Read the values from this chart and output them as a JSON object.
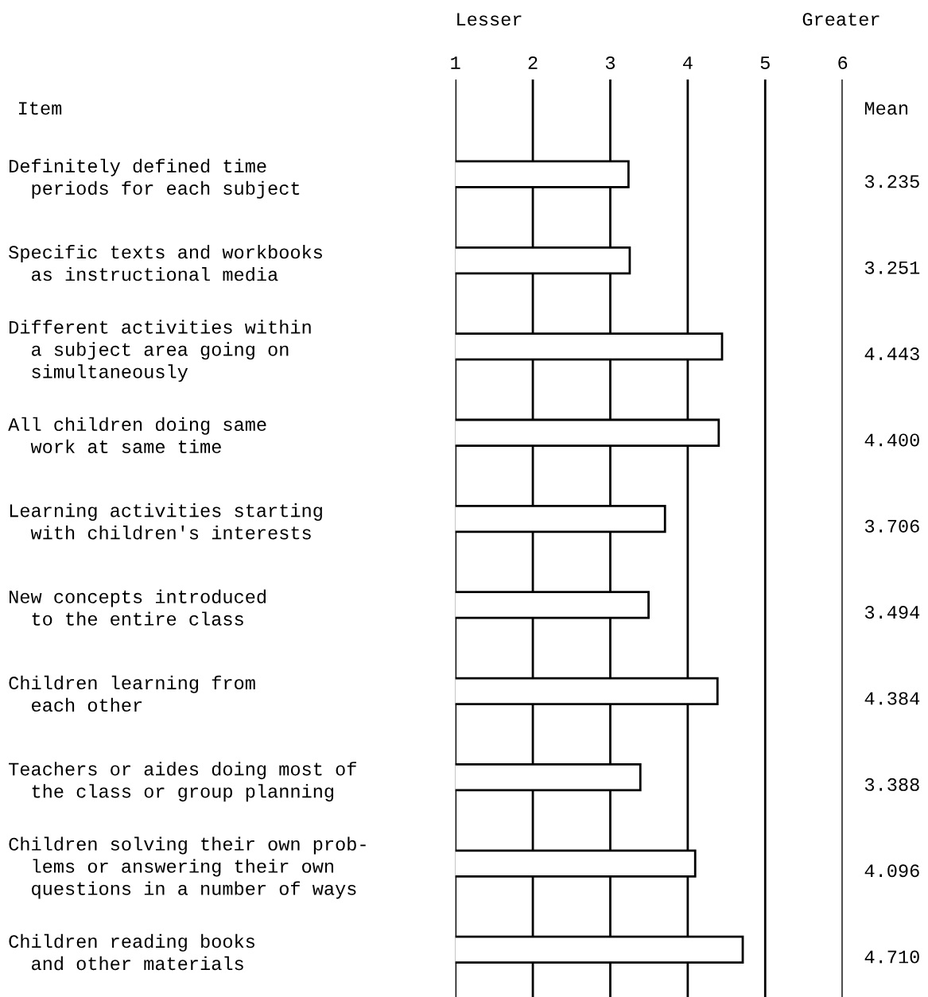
{
  "chart_data": {
    "type": "bar",
    "orientation": "horizontal",
    "ylabel": "Item",
    "categories": [
      "Definitely defined time\n  periods for each subject",
      "Specific texts and workbooks\n  as instructional media",
      "Different activities within\n  a subject area going on\n  simultaneously",
      "All children doing same\n  work at same time",
      "Learning activities starting\n  with children's interests",
      "New concepts introduced\n  to the entire class",
      "Children learning from\n  each other",
      "Teachers or aides doing most of\n  the class or group planning",
      "Children solving their own prob-\n  lems or answering their own\n  questions in a number of ways",
      "Children reading books\n  and other materials"
    ],
    "values": [
      3.235,
      3.251,
      4.443,
      4.4,
      3.706,
      3.494,
      4.384,
      3.388,
      4.096,
      4.71
    ],
    "value_labels": [
      "3.235",
      "3.251",
      "4.443",
      "4.400",
      "3.706",
      "3.494",
      "4.384",
      "3.388",
      "4.096",
      "4.710"
    ],
    "color": "#ffffff",
    "xlim": [
      1,
      6
    ],
    "xticks": [
      1,
      2,
      3,
      4,
      5,
      6
    ],
    "grid": "x",
    "annotations": [
      "Lesser",
      "Greater",
      "Mean"
    ]
  }
}
